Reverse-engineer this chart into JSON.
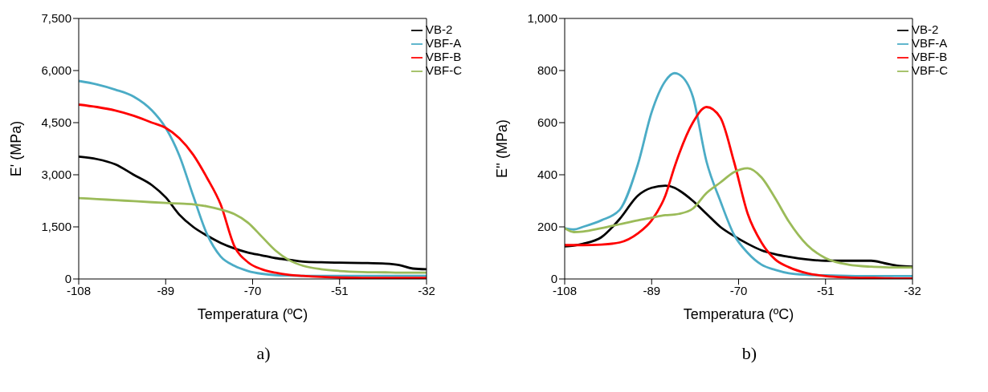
{
  "chart_data": [
    {
      "type": "line",
      "xlabel": "Temperatura (ºC)",
      "ylabel": "E' (MPa)",
      "annotations": [
        "a)"
      ],
      "legend": "top right",
      "grid": false,
      "marker": "none",
      "line_style": "solid",
      "x": [
        -108,
        -104,
        -100,
        -96,
        -92,
        -89,
        -86,
        -83,
        -80,
        -77,
        -74,
        -71,
        -68,
        -65,
        -62,
        -59,
        -55,
        -51,
        -46,
        -41,
        -38,
        -35,
        -32
      ],
      "xlim": [
        -108,
        -32
      ],
      "xticks": [
        -108,
        -89,
        -70,
        -51,
        -32
      ],
      "ylim": [
        0,
        7500
      ],
      "yticks": [
        {
          "value": 0,
          "label": "0"
        },
        {
          "value": 1500,
          "label": "1,500"
        },
        {
          "value": 3000,
          "label": "3,000"
        },
        {
          "value": 4500,
          "label": "4,500"
        },
        {
          "value": 6000,
          "label": "6,000"
        },
        {
          "value": 7500,
          "label": "7,500"
        }
      ],
      "series": [
        {
          "name": "VB-2",
          "color": "#000000",
          "values": [
            3520,
            3450,
            3300,
            3000,
            2700,
            2350,
            1850,
            1500,
            1250,
            1040,
            880,
            760,
            680,
            600,
            550,
            500,
            480,
            470,
            460,
            440,
            400,
            300,
            280
          ]
        },
        {
          "name": "VBF-A",
          "color": "#4bacc6",
          "values": [
            5700,
            5600,
            5450,
            5250,
            4850,
            4350,
            3550,
            2400,
            1300,
            650,
            380,
            230,
            150,
            110,
            100,
            90,
            90,
            90,
            90,
            90,
            90,
            90,
            90
          ]
        },
        {
          "name": "VBF-B",
          "color": "#ff0000",
          "values": [
            5020,
            4950,
            4850,
            4700,
            4500,
            4350,
            4050,
            3580,
            2920,
            2150,
            950,
            480,
            280,
            180,
            120,
            90,
            60,
            40,
            30,
            30,
            30,
            30,
            30
          ]
        },
        {
          "name": "VBF-C",
          "color": "#9bbb59",
          "values": [
            2330,
            2300,
            2270,
            2240,
            2210,
            2190,
            2170,
            2150,
            2090,
            2000,
            1870,
            1620,
            1220,
            820,
            540,
            380,
            280,
            230,
            200,
            190,
            180,
            180,
            180
          ]
        }
      ]
    },
    {
      "type": "line",
      "xlabel": "Temperatura (ºC)",
      "ylabel": "E'' (MPa)",
      "annotations": [
        "b)"
      ],
      "legend": "top right",
      "grid": false,
      "marker": "none",
      "line_style": "solid",
      "x": [
        -108,
        -106,
        -104,
        -100,
        -96,
        -92,
        -89,
        -86,
        -84,
        -83,
        -80,
        -77,
        -74,
        -71,
        -68,
        -65,
        -62,
        -59,
        -55,
        -51,
        -46,
        -41,
        -38,
        -35,
        -32
      ],
      "xlim": [
        -108,
        -32
      ],
      "xticks": [
        -108,
        -89,
        -70,
        -51,
        -32
      ],
      "ylim": [
        0,
        1000
      ],
      "yticks": [
        0,
        200,
        400,
        600,
        800,
        {
          "value": 1000,
          "label": "1,000"
        }
      ],
      "series": [
        {
          "name": "VB-2",
          "color": "#000000",
          "values": [
            125,
            128,
            135,
            160,
            230,
            320,
            350,
            358,
            350,
            340,
            300,
            250,
            200,
            165,
            135,
            110,
            95,
            85,
            75,
            70,
            70,
            70,
            60,
            50,
            47
          ]
        },
        {
          "name": "VBF-A",
          "color": "#4bacc6",
          "values": [
            195,
            190,
            200,
            225,
            265,
            440,
            640,
            760,
            790,
            785,
            700,
            450,
            300,
            170,
            100,
            55,
            35,
            22,
            16,
            14,
            12,
            11,
            11,
            11,
            11
          ]
        },
        {
          "name": "VBF-B",
          "color": "#ff0000",
          "values": [
            130,
            130,
            130,
            132,
            140,
            175,
            225,
            320,
            430,
            480,
            600,
            660,
            620,
            450,
            250,
            140,
            75,
            45,
            22,
            11,
            6,
            4,
            3,
            2,
            2
          ]
        },
        {
          "name": "VBF-C",
          "color": "#9bbb59",
          "values": [
            195,
            180,
            182,
            195,
            210,
            225,
            235,
            245,
            247,
            250,
            270,
            330,
            370,
            410,
            425,
            390,
            310,
            220,
            130,
            80,
            55,
            47,
            45,
            44,
            44
          ]
        }
      ]
    }
  ]
}
